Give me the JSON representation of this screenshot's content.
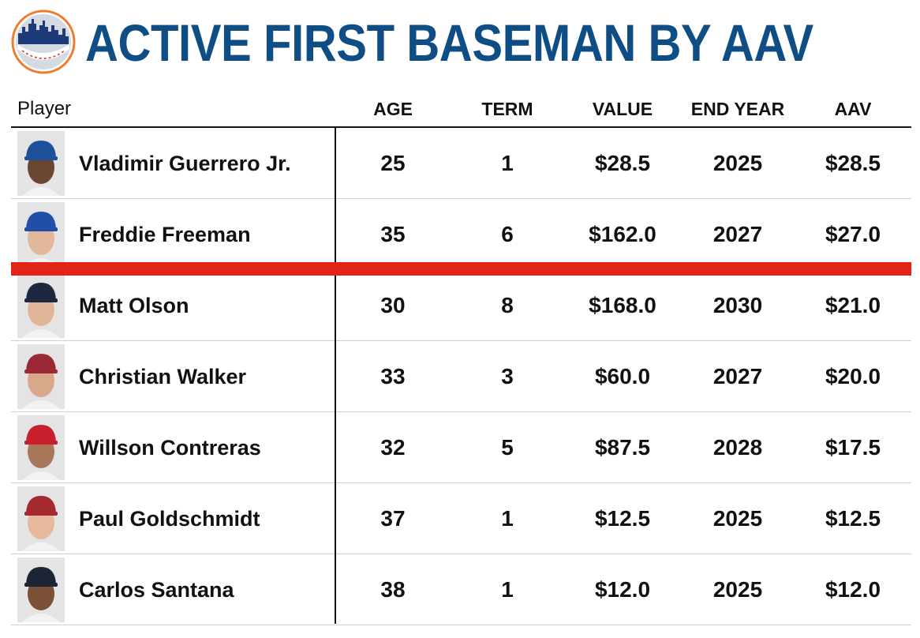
{
  "title": "ACTIVE FIRST BASEMAN BY AAV",
  "columns": {
    "player": "Player",
    "age": "AGE",
    "term": "TERM",
    "value": "VALUE",
    "end_year": "END YEAR",
    "aav": "AAV"
  },
  "rows": [
    {
      "name": "Vladimir Guerrero Jr.",
      "age": "25",
      "term": "1",
      "value": "$28.5",
      "end_year": "2025",
      "aav": "$28.5",
      "cap_color": "#1d4f9c",
      "skin": "#6b4630"
    },
    {
      "name": "Freddie Freeman",
      "age": "35",
      "term": "6",
      "value": "$162.0",
      "end_year": "2027",
      "aav": "$27.0",
      "cap_color": "#1f4fa8",
      "skin": "#e2b79a"
    },
    {
      "name": "Matt Olson",
      "age": "30",
      "term": "8",
      "value": "$168.0",
      "end_year": "2030",
      "aav": "$21.0",
      "cap_color": "#1d2740",
      "skin": "#e0b496"
    },
    {
      "name": "Christian Walker",
      "age": "33",
      "term": "3",
      "value": "$60.0",
      "end_year": "2027",
      "aav": "$20.0",
      "cap_color": "#9c2a36",
      "skin": "#d9a88a"
    },
    {
      "name": "Willson Contreras",
      "age": "32",
      "term": "5",
      "value": "$87.5",
      "end_year": "2028",
      "aav": "$17.5",
      "cap_color": "#c8202c",
      "skin": "#a9785a"
    },
    {
      "name": "Paul Goldschmidt",
      "age": "37",
      "term": "1",
      "value": "$12.5",
      "end_year": "2025",
      "aav": "$12.5",
      "cap_color": "#a32a2e",
      "skin": "#e6b89c"
    },
    {
      "name": "Carlos Santana",
      "age": "38",
      "term": "1",
      "value": "$12.0",
      "end_year": "2025",
      "aav": "$12.0",
      "cap_color": "#1b2335",
      "skin": "#7a5038"
    }
  ],
  "colors": {
    "title": "#0f4e85",
    "cutoff_line": "#e2231a"
  }
}
